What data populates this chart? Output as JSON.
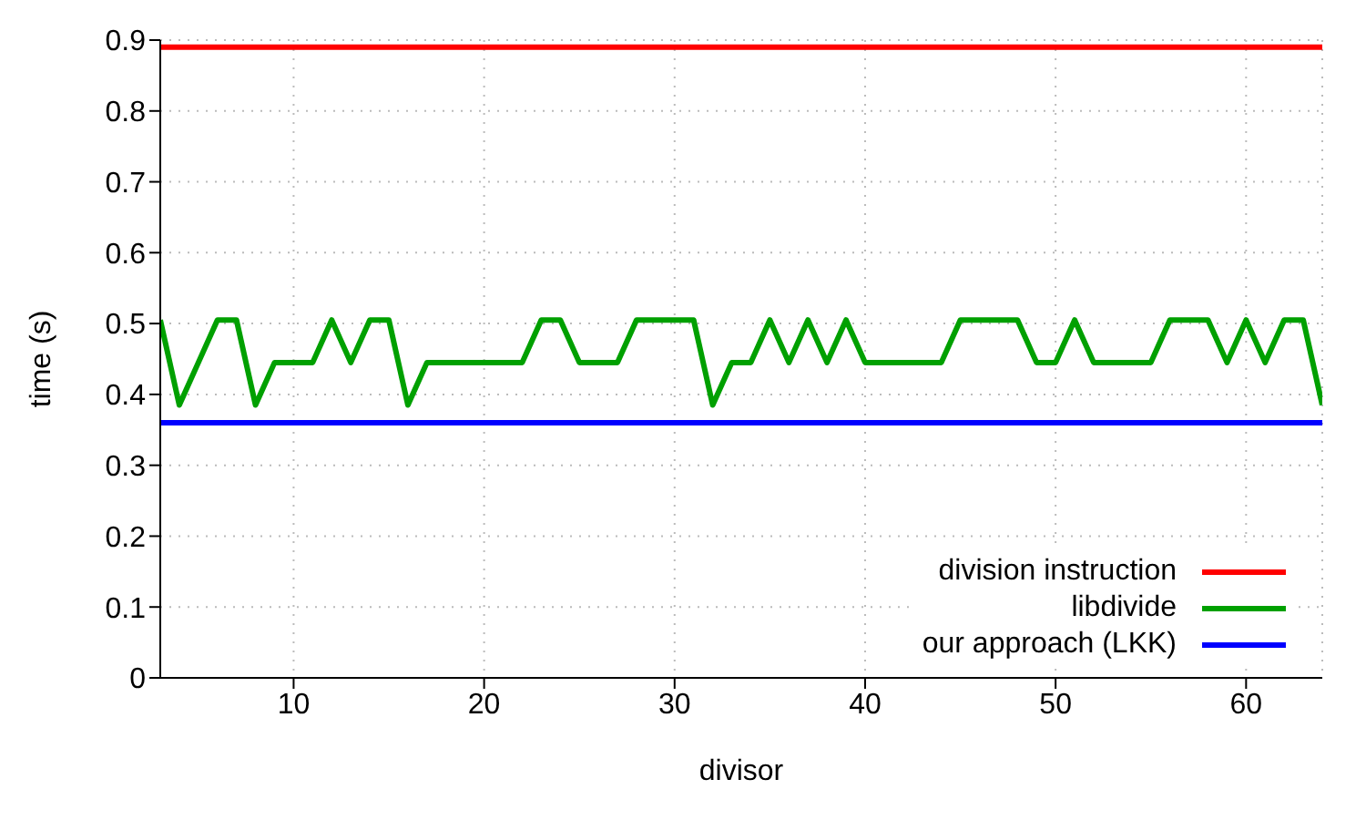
{
  "chart_data": {
    "type": "line",
    "xlabel": "divisor",
    "ylabel": "time (s)",
    "xlim": [
      3,
      64
    ],
    "xticks": [
      10,
      20,
      30,
      40,
      50,
      60
    ],
    "ylim": [
      0,
      0.9
    ],
    "yticks": [
      0,
      0.1,
      0.2,
      0.3,
      0.4,
      0.5,
      0.6,
      0.7,
      0.8,
      0.9
    ],
    "grid": true,
    "legend": "bottom right",
    "marker": "none",
    "line_style": "solid",
    "x": [
      3,
      4,
      5,
      6,
      7,
      8,
      9,
      10,
      11,
      12,
      13,
      14,
      15,
      16,
      17,
      18,
      19,
      20,
      21,
      22,
      23,
      24,
      25,
      26,
      27,
      28,
      29,
      30,
      31,
      32,
      33,
      34,
      35,
      36,
      37,
      38,
      39,
      40,
      41,
      42,
      43,
      44,
      45,
      46,
      47,
      48,
      49,
      50,
      51,
      52,
      53,
      54,
      55,
      56,
      57,
      58,
      59,
      60,
      61,
      62,
      63,
      64
    ],
    "series": [
      {
        "name": "division instruction",
        "color": "#ff0000",
        "values": [
          0.89,
          0.89,
          0.89,
          0.89,
          0.89,
          0.89,
          0.89,
          0.89,
          0.89,
          0.89,
          0.89,
          0.89,
          0.89,
          0.89,
          0.89,
          0.89,
          0.89,
          0.89,
          0.89,
          0.89,
          0.89,
          0.89,
          0.89,
          0.89,
          0.89,
          0.89,
          0.89,
          0.89,
          0.89,
          0.89,
          0.89,
          0.89,
          0.89,
          0.89,
          0.89,
          0.89,
          0.89,
          0.89,
          0.89,
          0.89,
          0.89,
          0.89,
          0.89,
          0.89,
          0.89,
          0.89,
          0.89,
          0.89,
          0.89,
          0.89,
          0.89,
          0.89,
          0.89,
          0.89,
          0.89,
          0.89,
          0.89,
          0.89,
          0.89,
          0.89,
          0.89,
          0.89
        ]
      },
      {
        "name": "libdivide",
        "color": "#00a000",
        "values": [
          0.505,
          0.385,
          0.445,
          0.505,
          0.505,
          0.385,
          0.445,
          0.445,
          0.445,
          0.505,
          0.445,
          0.505,
          0.505,
          0.385,
          0.445,
          0.445,
          0.445,
          0.445,
          0.445,
          0.445,
          0.505,
          0.505,
          0.445,
          0.445,
          0.445,
          0.505,
          0.505,
          0.505,
          0.505,
          0.385,
          0.445,
          0.445,
          0.505,
          0.445,
          0.505,
          0.445,
          0.505,
          0.445,
          0.445,
          0.445,
          0.445,
          0.445,
          0.505,
          0.505,
          0.505,
          0.505,
          0.445,
          0.445,
          0.505,
          0.445,
          0.445,
          0.445,
          0.445,
          0.505,
          0.505,
          0.505,
          0.445,
          0.505,
          0.445,
          0.505,
          0.505,
          0.385
        ]
      },
      {
        "name": "our approach (LKK)",
        "color": "#0000ff",
        "values": [
          0.36,
          0.36,
          0.36,
          0.36,
          0.36,
          0.36,
          0.36,
          0.36,
          0.36,
          0.36,
          0.36,
          0.36,
          0.36,
          0.36,
          0.36,
          0.36,
          0.36,
          0.36,
          0.36,
          0.36,
          0.36,
          0.36,
          0.36,
          0.36,
          0.36,
          0.36,
          0.36,
          0.36,
          0.36,
          0.36,
          0.36,
          0.36,
          0.36,
          0.36,
          0.36,
          0.36,
          0.36,
          0.36,
          0.36,
          0.36,
          0.36,
          0.36,
          0.36,
          0.36,
          0.36,
          0.36,
          0.36,
          0.36,
          0.36,
          0.36,
          0.36,
          0.36,
          0.36,
          0.36,
          0.36,
          0.36,
          0.36,
          0.36,
          0.36,
          0.36,
          0.36,
          0.36
        ]
      }
    ]
  }
}
